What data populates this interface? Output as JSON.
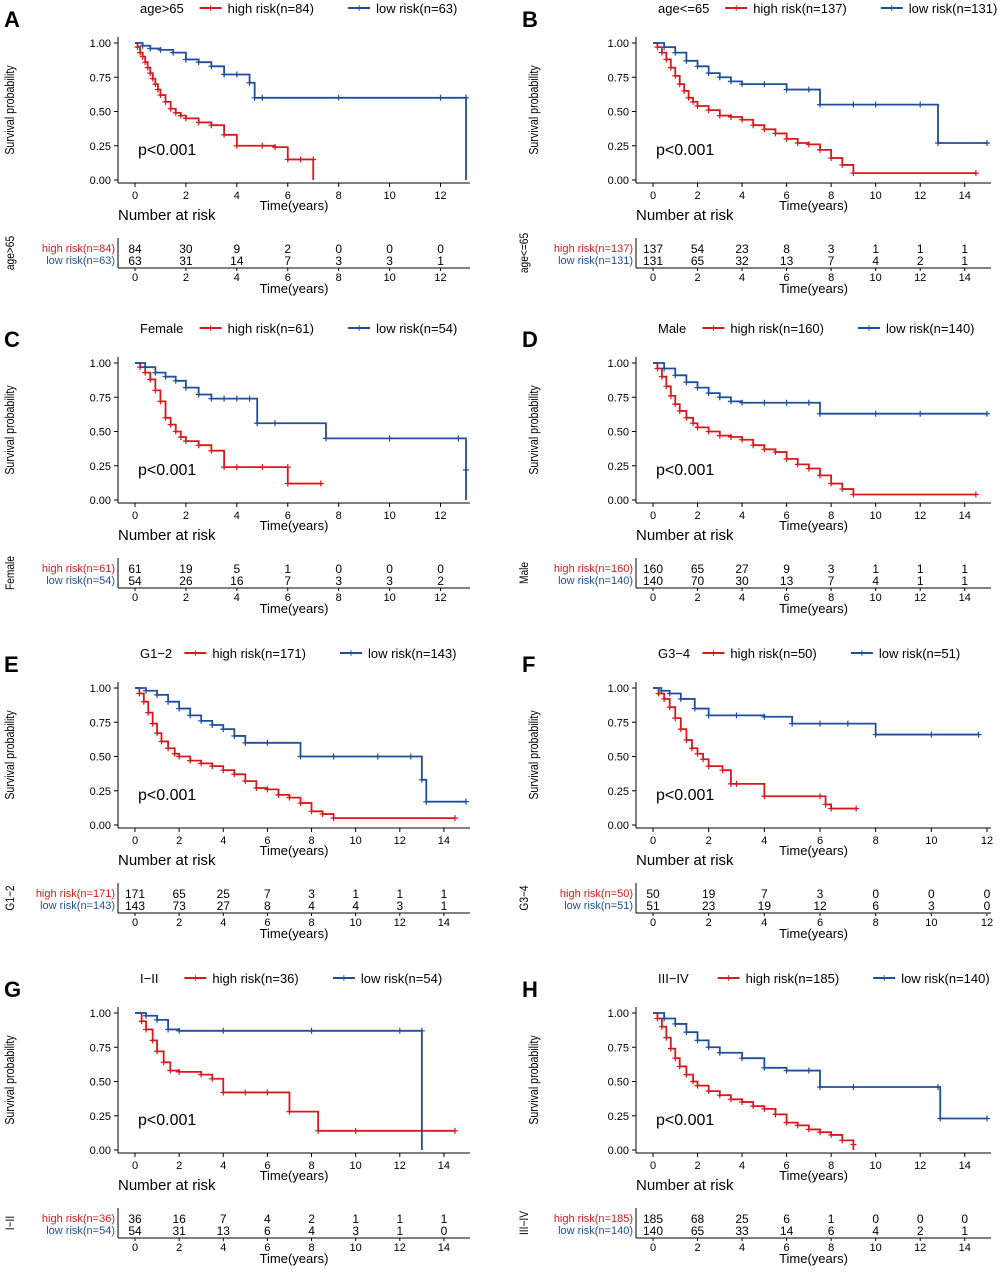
{
  "colors": {
    "high": "#d7191c",
    "low": "#1f4e9c",
    "axis": "#000000"
  },
  "common": {
    "ylabel": "Survival probability",
    "xlabel": "Time(years)",
    "yticks": [
      "0.00",
      "0.25",
      "0.50",
      "0.75",
      "1.00"
    ],
    "risk_title": "Number at risk",
    "legend_high_swatch": "+",
    "legend_low_swatch": "+"
  },
  "chart_data": [
    {
      "type": "line",
      "panel": "A",
      "group": "age>65",
      "legend_high": "high risk(n=84)",
      "legend_low": "low risk(n=63)",
      "pvalue": "p<0.001",
      "xlim": [
        0,
        13
      ],
      "ylim": [
        0,
        1
      ],
      "xticks": [
        0,
        2,
        4,
        6,
        8,
        10,
        12
      ],
      "risk_times": [
        0,
        2,
        4,
        6,
        8,
        10,
        12
      ],
      "risk_high": [
        84,
        30,
        9,
        2,
        0,
        0,
        0
      ],
      "risk_low": [
        63,
        31,
        14,
        7,
        3,
        3,
        1
      ],
      "series": [
        {
          "name": "high risk",
          "x": [
            0,
            0.1,
            0.2,
            0.3,
            0.4,
            0.5,
            0.6,
            0.7,
            0.8,
            0.9,
            1.0,
            1.2,
            1.4,
            1.6,
            1.8,
            2.0,
            2.5,
            3.0,
            3.5,
            4.0,
            5.0,
            5.5,
            6.0,
            6.5,
            7.0,
            7.0
          ],
          "y": [
            1,
            0.97,
            0.93,
            0.9,
            0.86,
            0.82,
            0.78,
            0.74,
            0.7,
            0.66,
            0.62,
            0.57,
            0.52,
            0.49,
            0.47,
            0.45,
            0.42,
            0.4,
            0.33,
            0.25,
            0.25,
            0.24,
            0.15,
            0.15,
            0.15,
            0
          ]
        },
        {
          "name": "low risk",
          "x": [
            0,
            0.3,
            0.6,
            1.0,
            1.5,
            2.0,
            2.5,
            3.0,
            3.5,
            4.0,
            4.5,
            4.7,
            5.0,
            8.0,
            12.0,
            13.0,
            13.0
          ],
          "y": [
            1,
            0.98,
            0.96,
            0.95,
            0.93,
            0.88,
            0.86,
            0.83,
            0.77,
            0.77,
            0.71,
            0.6,
            0.6,
            0.6,
            0.6,
            0.6,
            0
          ]
        }
      ]
    },
    {
      "type": "line",
      "panel": "B",
      "group": "age<=65",
      "legend_high": "high risk(n=137)",
      "legend_low": "low risk(n=131)",
      "pvalue": "p<0.001",
      "xlim": [
        0,
        15
      ],
      "ylim": [
        0,
        1
      ],
      "xticks": [
        0,
        2,
        4,
        6,
        8,
        10,
        12,
        14
      ],
      "risk_times": [
        0,
        2,
        4,
        6,
        8,
        10,
        12,
        14
      ],
      "risk_high": [
        137,
        54,
        23,
        8,
        3,
        1,
        1,
        1
      ],
      "risk_low": [
        131,
        65,
        32,
        13,
        7,
        4,
        2,
        1
      ],
      "series": [
        {
          "name": "high risk",
          "x": [
            0,
            0.2,
            0.4,
            0.6,
            0.8,
            1.0,
            1.2,
            1.4,
            1.6,
            1.8,
            2.0,
            2.5,
            3.0,
            3.5,
            4.0,
            4.5,
            5.0,
            5.5,
            6.0,
            6.5,
            7.0,
            7.5,
            8.0,
            8.5,
            9.0,
            14.5
          ],
          "y": [
            1,
            0.97,
            0.93,
            0.88,
            0.82,
            0.76,
            0.7,
            0.65,
            0.6,
            0.57,
            0.54,
            0.51,
            0.47,
            0.46,
            0.44,
            0.4,
            0.37,
            0.34,
            0.3,
            0.27,
            0.26,
            0.22,
            0.16,
            0.11,
            0.05,
            0.05
          ]
        },
        {
          "name": "low risk",
          "x": [
            0,
            0.5,
            1.0,
            1.5,
            2.0,
            2.5,
            3.0,
            3.5,
            4.0,
            5.0,
            6.0,
            7.0,
            7.5,
            9.0,
            10.0,
            12.0,
            12.8,
            15.0
          ],
          "y": [
            1,
            0.97,
            0.93,
            0.87,
            0.83,
            0.78,
            0.75,
            0.72,
            0.7,
            0.7,
            0.66,
            0.66,
            0.55,
            0.55,
            0.55,
            0.55,
            0.27,
            0.27
          ]
        }
      ]
    },
    {
      "type": "line",
      "panel": "C",
      "group": "Female",
      "legend_high": "high risk(n=61)",
      "legend_low": "low risk(n=54)",
      "pvalue": "p<0.001",
      "xlim": [
        0,
        13
      ],
      "ylim": [
        0,
        1
      ],
      "xticks": [
        0,
        2,
        4,
        6,
        8,
        10,
        12
      ],
      "risk_times": [
        0,
        2,
        4,
        6,
        8,
        10,
        12
      ],
      "risk_high": [
        61,
        19,
        5,
        1,
        0,
        0,
        0
      ],
      "risk_low": [
        54,
        26,
        16,
        7,
        3,
        3,
        2
      ],
      "series": [
        {
          "name": "high risk",
          "x": [
            0,
            0.2,
            0.4,
            0.6,
            0.8,
            1.0,
            1.2,
            1.4,
            1.6,
            1.8,
            2.0,
            2.5,
            3.0,
            3.5,
            4.0,
            5.0,
            6.0,
            6.0,
            7.3
          ],
          "y": [
            1,
            0.97,
            0.93,
            0.88,
            0.8,
            0.72,
            0.6,
            0.55,
            0.5,
            0.46,
            0.43,
            0.4,
            0.36,
            0.24,
            0.24,
            0.24,
            0.24,
            0.12,
            0.12
          ]
        },
        {
          "name": "low risk",
          "x": [
            0,
            0.4,
            0.8,
            1.2,
            1.6,
            2.0,
            2.5,
            3.0,
            3.5,
            4.0,
            4.5,
            4.8,
            5.5,
            7.5,
            10.0,
            12.7,
            13.0,
            13.0
          ],
          "y": [
            1,
            0.97,
            0.93,
            0.9,
            0.87,
            0.82,
            0.77,
            0.74,
            0.74,
            0.74,
            0.74,
            0.56,
            0.56,
            0.45,
            0.45,
            0.45,
            0.22,
            0
          ]
        }
      ]
    },
    {
      "type": "line",
      "panel": "D",
      "group": "Male",
      "legend_high": "high risk(n=160)",
      "legend_low": "low risk(n=140)",
      "pvalue": "p<0.001",
      "xlim": [
        0,
        15
      ],
      "ylim": [
        0,
        1
      ],
      "xticks": [
        0,
        2,
        4,
        6,
        8,
        10,
        12,
        14
      ],
      "risk_times": [
        0,
        2,
        4,
        6,
        8,
        10,
        12,
        14
      ],
      "risk_high": [
        160,
        65,
        27,
        9,
        3,
        1,
        1,
        1
      ],
      "risk_low": [
        140,
        70,
        30,
        13,
        7,
        4,
        1,
        1
      ],
      "series": [
        {
          "name": "high risk",
          "x": [
            0,
            0.2,
            0.4,
            0.6,
            0.8,
            1.0,
            1.2,
            1.5,
            1.8,
            2.0,
            2.5,
            3.0,
            3.5,
            4.0,
            4.5,
            5.0,
            5.5,
            6.0,
            6.5,
            7.0,
            7.5,
            8.0,
            8.5,
            9.0,
            14.5
          ],
          "y": [
            1,
            0.96,
            0.9,
            0.83,
            0.76,
            0.7,
            0.65,
            0.6,
            0.56,
            0.53,
            0.5,
            0.47,
            0.46,
            0.44,
            0.4,
            0.37,
            0.35,
            0.3,
            0.26,
            0.23,
            0.18,
            0.12,
            0.08,
            0.04,
            0.04
          ]
        },
        {
          "name": "low risk",
          "x": [
            0,
            0.5,
            1.0,
            1.5,
            2.0,
            2.5,
            3.0,
            3.5,
            4.0,
            5.0,
            6.0,
            7.0,
            7.5,
            10.0,
            12.0,
            15.0
          ],
          "y": [
            1,
            0.96,
            0.91,
            0.86,
            0.82,
            0.78,
            0.75,
            0.72,
            0.71,
            0.71,
            0.71,
            0.71,
            0.63,
            0.63,
            0.63,
            0.63
          ]
        }
      ]
    },
    {
      "type": "line",
      "panel": "E",
      "group": "G1−2",
      "legend_high": "high risk(n=171)",
      "legend_low": "low risk(n=143)",
      "pvalue": "p<0.001",
      "xlim": [
        0,
        15
      ],
      "ylim": [
        0,
        1
      ],
      "xticks": [
        0,
        2,
        4,
        6,
        8,
        10,
        12,
        14
      ],
      "risk_times": [
        0,
        2,
        4,
        6,
        8,
        10,
        12,
        14
      ],
      "risk_high": [
        171,
        65,
        25,
        7,
        3,
        1,
        1,
        1
      ],
      "risk_low": [
        143,
        73,
        27,
        8,
        4,
        4,
        3,
        1
      ],
      "series": [
        {
          "name": "high risk",
          "x": [
            0,
            0.2,
            0.4,
            0.6,
            0.8,
            1.0,
            1.2,
            1.5,
            1.8,
            2.0,
            2.5,
            3.0,
            3.5,
            4.0,
            4.5,
            5.0,
            5.5,
            6.0,
            6.5,
            7.0,
            7.5,
            8.0,
            8.5,
            9.0,
            14.5
          ],
          "y": [
            1,
            0.96,
            0.9,
            0.82,
            0.74,
            0.67,
            0.61,
            0.56,
            0.52,
            0.5,
            0.47,
            0.45,
            0.43,
            0.4,
            0.37,
            0.32,
            0.27,
            0.26,
            0.22,
            0.2,
            0.16,
            0.1,
            0.08,
            0.05,
            0.05
          ]
        },
        {
          "name": "low risk",
          "x": [
            0,
            0.5,
            1.0,
            1.5,
            2.0,
            2.5,
            3.0,
            3.5,
            4.0,
            4.5,
            5.0,
            6.0,
            7.5,
            9.0,
            11.0,
            12.5,
            13.0,
            13.2,
            15.0
          ],
          "y": [
            1,
            0.98,
            0.95,
            0.9,
            0.85,
            0.8,
            0.76,
            0.73,
            0.7,
            0.65,
            0.6,
            0.6,
            0.5,
            0.5,
            0.5,
            0.5,
            0.33,
            0.17,
            0.17
          ]
        }
      ]
    },
    {
      "type": "line",
      "panel": "F",
      "group": "G3−4",
      "legend_high": "high risk(n=50)",
      "legend_low": "low risk(n=51)",
      "pvalue": "p<0.001",
      "xlim": [
        0,
        12
      ],
      "ylim": [
        0,
        1
      ],
      "xticks": [
        0,
        2,
        4,
        6,
        8,
        10,
        12
      ],
      "risk_times": [
        0,
        2,
        4,
        6,
        8,
        10,
        12
      ],
      "risk_high": [
        50,
        19,
        7,
        3,
        0,
        0,
        0
      ],
      "risk_low": [
        51,
        23,
        19,
        12,
        6,
        3,
        0
      ],
      "series": [
        {
          "name": "high risk",
          "x": [
            0,
            0.2,
            0.4,
            0.6,
            0.8,
            1.0,
            1.2,
            1.4,
            1.6,
            1.8,
            2.0,
            2.5,
            2.8,
            3.0,
            4.0,
            6.0,
            6.2,
            6.4,
            7.3
          ],
          "y": [
            1,
            0.96,
            0.92,
            0.86,
            0.78,
            0.7,
            0.62,
            0.56,
            0.52,
            0.48,
            0.43,
            0.4,
            0.3,
            0.3,
            0.21,
            0.21,
            0.15,
            0.12,
            0.12
          ]
        },
        {
          "name": "low risk",
          "x": [
            0,
            0.3,
            0.6,
            1.0,
            1.5,
            2.0,
            3.0,
            4.0,
            5.0,
            6.0,
            7.0,
            8.0,
            10.0,
            11.7
          ],
          "y": [
            1,
            0.98,
            0.96,
            0.92,
            0.85,
            0.8,
            0.8,
            0.79,
            0.74,
            0.74,
            0.74,
            0.66,
            0.66,
            0.66
          ]
        }
      ]
    },
    {
      "type": "line",
      "panel": "G",
      "group": "I−II",
      "legend_high": "high risk(n=36)",
      "legend_low": "low risk(n=54)",
      "pvalue": "p<0.001",
      "xlim": [
        0,
        15
      ],
      "ylim": [
        0,
        1
      ],
      "xticks": [
        0,
        2,
        4,
        6,
        8,
        10,
        12,
        14
      ],
      "risk_times": [
        0,
        2,
        4,
        6,
        8,
        10,
        12,
        14
      ],
      "risk_high": [
        36,
        16,
        7,
        4,
        2,
        1,
        1,
        1
      ],
      "risk_low": [
        54,
        31,
        13,
        6,
        4,
        3,
        1,
        0
      ],
      "series": [
        {
          "name": "high risk",
          "x": [
            0,
            0.3,
            0.5,
            0.8,
            1.0,
            1.3,
            1.6,
            2.0,
            3.0,
            3.5,
            4.0,
            5.0,
            6.0,
            7.0,
            8.3,
            10.0,
            14.5
          ],
          "y": [
            1,
            0.94,
            0.88,
            0.8,
            0.72,
            0.64,
            0.58,
            0.57,
            0.55,
            0.52,
            0.42,
            0.42,
            0.42,
            0.28,
            0.14,
            0.14,
            0.14
          ]
        },
        {
          "name": "low risk",
          "x": [
            0,
            0.5,
            1.0,
            1.5,
            2.0,
            4.0,
            8.0,
            12.0,
            13.0,
            13.0
          ],
          "y": [
            1,
            0.98,
            0.95,
            0.88,
            0.87,
            0.87,
            0.87,
            0.87,
            0.87,
            0
          ]
        }
      ]
    },
    {
      "type": "line",
      "panel": "H",
      "group": "III−IV",
      "legend_high": "high risk(n=185)",
      "legend_low": "low risk(n=140)",
      "pvalue": "p<0.001",
      "xlim": [
        0,
        15
      ],
      "ylim": [
        0,
        1
      ],
      "xticks": [
        0,
        2,
        4,
        6,
        8,
        10,
        12,
        14
      ],
      "risk_times": [
        0,
        2,
        4,
        6,
        8,
        10,
        12,
        14
      ],
      "risk_high": [
        185,
        68,
        25,
        6,
        1,
        0,
        0,
        0
      ],
      "risk_low": [
        140,
        65,
        33,
        14,
        6,
        4,
        2,
        1
      ],
      "series": [
        {
          "name": "high risk",
          "x": [
            0,
            0.2,
            0.4,
            0.6,
            0.8,
            1.0,
            1.2,
            1.5,
            1.8,
            2.0,
            2.5,
            3.0,
            3.5,
            4.0,
            4.5,
            5.0,
            5.5,
            6.0,
            6.5,
            7.0,
            7.5,
            8.0,
            8.5,
            9.0,
            9.0
          ],
          "y": [
            1,
            0.96,
            0.9,
            0.82,
            0.74,
            0.67,
            0.61,
            0.55,
            0.5,
            0.47,
            0.43,
            0.4,
            0.37,
            0.35,
            0.32,
            0.3,
            0.26,
            0.2,
            0.18,
            0.15,
            0.13,
            0.11,
            0.07,
            0.04,
            0
          ]
        },
        {
          "name": "low risk",
          "x": [
            0,
            0.5,
            1.0,
            1.5,
            2.0,
            2.5,
            3.0,
            4.0,
            5.0,
            6.0,
            7.0,
            7.5,
            9.0,
            12.8,
            12.9,
            15.0
          ],
          "y": [
            1,
            0.96,
            0.92,
            0.86,
            0.8,
            0.75,
            0.71,
            0.67,
            0.6,
            0.58,
            0.58,
            0.46,
            0.46,
            0.46,
            0.23,
            0.23
          ]
        }
      ]
    }
  ]
}
